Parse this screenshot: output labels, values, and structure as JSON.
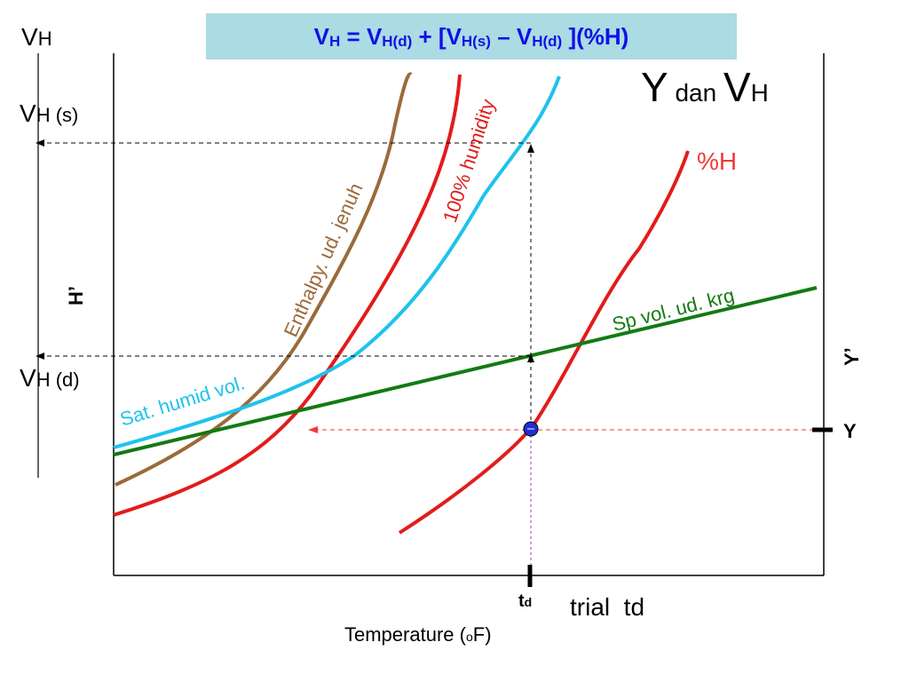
{
  "formula": {
    "lhs_main": "V",
    "lhs_sub": "H",
    "eq": " = ",
    "t1_main": "V",
    "t1_sub": "H(d)",
    "plus_open": " + [",
    "t2_main": "V",
    "t2_sub": "H(s)",
    "minus": " – ",
    "t3_main": "V",
    "t3_sub": "H(d)",
    "tail": " ](%H)"
  },
  "title": {
    "main1": "Y",
    "small": " dan ",
    "main2": "V",
    "sub2": "H"
  },
  "left_axis": {
    "vh_main": "V",
    "vh_sub": "H",
    "vhs_main": "V",
    "vhs_sub": "H (s)",
    "vhd_main": "V",
    "vhd_sub": "H (d)",
    "h_prime": "H’"
  },
  "right_axis": {
    "y_prime": "Y’",
    "y": "Y"
  },
  "bottom": {
    "td_main": "t",
    "td_sub": "d",
    "trial": "trial  td",
    "xlabel_main": "Temperature (",
    "xlabel_small": "o",
    "xlabel_end": "F)"
  },
  "curve_labels": {
    "enthalpy": "Enthalpy. ud. jenuh",
    "humidity100": "100% humidity",
    "pctH": "%H",
    "sat_vol": "Sat. humid vol.",
    "sp_vol": "Sp vol. ud. krg"
  },
  "colors": {
    "formula_bg": "#abdbe3",
    "formula_text": "#1010e8",
    "red": "#e31b1b",
    "brown": "#9a6a3a",
    "cyan": "#1ec2ee",
    "green": "#137a13",
    "pctH_label": "#ef3a3a",
    "point": "#1f2fd6"
  }
}
